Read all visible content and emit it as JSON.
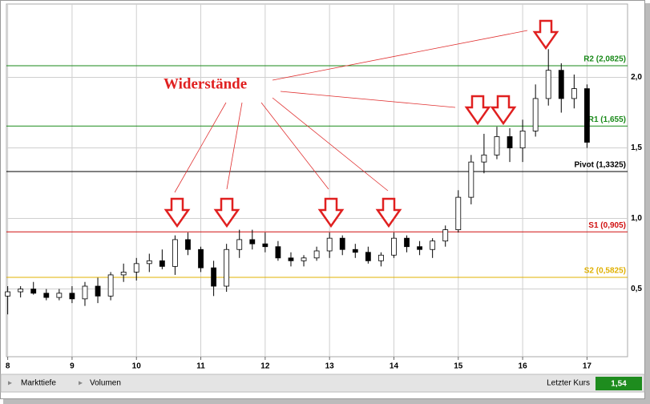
{
  "chart_data": {
    "type": "candlestick",
    "annotation": "Widerstände",
    "x": [
      8.0,
      8.2,
      8.4,
      8.6,
      8.8,
      9.0,
      9.2,
      9.4,
      9.6,
      9.8,
      10.0,
      10.2,
      10.4,
      10.6,
      10.8,
      11.0,
      11.2,
      11.4,
      11.6,
      11.8,
      12.0,
      12.2,
      12.4,
      12.6,
      12.8,
      13.0,
      13.2,
      13.4,
      13.6,
      13.8,
      14.0,
      14.2,
      14.4,
      14.6,
      14.8,
      15.0,
      15.2,
      15.4,
      15.6,
      15.8,
      16.0,
      16.2,
      16.4,
      16.6,
      16.8,
      17.0
    ],
    "open": [
      0.45,
      0.48,
      0.5,
      0.47,
      0.44,
      0.47,
      0.43,
      0.52,
      0.45,
      0.6,
      0.62,
      0.68,
      0.7,
      0.66,
      0.85,
      0.78,
      0.65,
      0.52,
      0.78,
      0.85,
      0.82,
      0.8,
      0.72,
      0.7,
      0.72,
      0.77,
      0.86,
      0.78,
      0.76,
      0.7,
      0.74,
      0.86,
      0.8,
      0.78,
      0.84,
      0.92,
      1.15,
      1.4,
      1.45,
      1.58,
      1.5,
      1.62,
      1.85,
      2.05,
      1.85,
      1.92
    ],
    "high": [
      0.52,
      0.52,
      0.55,
      0.5,
      0.5,
      0.52,
      0.55,
      0.58,
      0.62,
      0.68,
      0.72,
      0.75,
      0.78,
      0.88,
      0.9,
      0.8,
      0.7,
      0.82,
      0.92,
      0.92,
      0.9,
      0.84,
      0.76,
      0.74,
      0.8,
      0.9,
      0.88,
      0.82,
      0.8,
      0.76,
      0.9,
      0.88,
      0.84,
      0.86,
      0.95,
      1.2,
      1.45,
      1.6,
      1.65,
      1.64,
      1.7,
      1.95,
      2.2,
      2.1,
      2.02,
      1.95
    ],
    "low": [
      0.32,
      0.44,
      0.46,
      0.42,
      0.42,
      0.4,
      0.38,
      0.4,
      0.42,
      0.55,
      0.56,
      0.62,
      0.64,
      0.6,
      0.74,
      0.62,
      0.45,
      0.48,
      0.72,
      0.78,
      0.76,
      0.7,
      0.66,
      0.66,
      0.7,
      0.72,
      0.74,
      0.72,
      0.68,
      0.66,
      0.72,
      0.76,
      0.74,
      0.72,
      0.8,
      0.9,
      1.1,
      1.32,
      1.42,
      1.4,
      1.4,
      1.58,
      1.8,
      1.75,
      1.78,
      1.5
    ],
    "close": [
      0.48,
      0.5,
      0.47,
      0.44,
      0.47,
      0.43,
      0.52,
      0.45,
      0.6,
      0.62,
      0.68,
      0.7,
      0.66,
      0.85,
      0.78,
      0.65,
      0.52,
      0.78,
      0.85,
      0.82,
      0.8,
      0.72,
      0.7,
      0.72,
      0.77,
      0.86,
      0.78,
      0.76,
      0.7,
      0.74,
      0.86,
      0.8,
      0.78,
      0.84,
      0.92,
      1.15,
      1.4,
      1.45,
      1.58,
      1.5,
      1.62,
      1.85,
      2.05,
      1.85,
      1.92,
      1.54
    ],
    "levels": [
      {
        "value": 2.0825,
        "label": "R2 (2,0825)",
        "color": "#1a8a1a"
      },
      {
        "value": 1.655,
        "label": "R1 (1,655)",
        "color": "#1a8a1a"
      },
      {
        "value": 1.3325,
        "label": "Pivot (1,3325)",
        "color": "#000000"
      },
      {
        "value": 0.905,
        "label": "S1 (0,905)",
        "color": "#d01010"
      },
      {
        "value": 0.5825,
        "label": "S2 (0,5825)",
        "color": "#e0b000"
      }
    ],
    "xlim": [
      7.98,
      17.63
    ],
    "xticks": [
      8,
      9,
      10,
      11,
      12,
      13,
      14,
      15,
      16,
      17
    ],
    "ylim": [
      0.02,
      2.52
    ],
    "yticks": [
      {
        "value": 0.5,
        "label": "0,5"
      },
      {
        "value": 1.0,
        "label": "1,0"
      },
      {
        "value": 1.5,
        "label": "1,5"
      },
      {
        "value": 2.0,
        "label": "2,0"
      }
    ],
    "grid": true
  },
  "toolbar": {
    "tab1": "Markttiefe",
    "tab2": "Volumen",
    "last_label": "Letzter Kurs",
    "last_value": "1,54"
  }
}
